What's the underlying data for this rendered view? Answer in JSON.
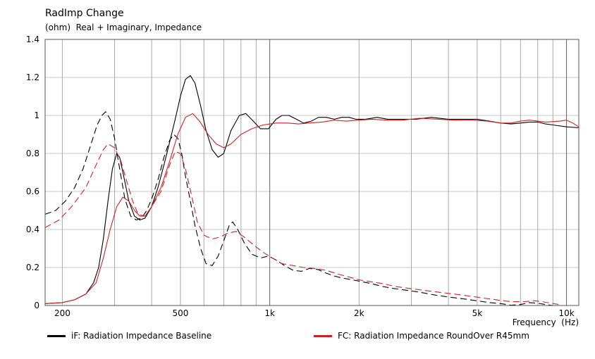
{
  "chart_data": {
    "type": "line",
    "title": "RadImp Change",
    "subtitle": "(ohm)  Real + Imaginary, Impedance",
    "xlabel": "Frequency  (Hz)",
    "ylabel": "(ohm)",
    "x_scale": "log",
    "xlim": [
      175,
      11000
    ],
    "ylim": [
      0,
      1.4
    ],
    "y_ticks": [
      0,
      0.2,
      0.4,
      0.6,
      0.8,
      1,
      1.2,
      1.4
    ],
    "y_tick_labels": [
      "0",
      "0.2",
      "0.4",
      "0.6",
      "0.8",
      "1",
      "1.2",
      "1.4"
    ],
    "x_tick_values": [
      200,
      500,
      1000,
      2000,
      5000,
      10000
    ],
    "x_tick_labels": [
      "200",
      "500",
      "1k",
      "2k",
      "5k",
      "10k"
    ],
    "grid": true,
    "legend_position": "bottom",
    "series": [
      {
        "name": "iF: Radiation Impedance Baseline",
        "color": "#000000",
        "component": "real",
        "style": "solid",
        "points": [
          [
            175,
            0.01
          ],
          [
            200,
            0.015
          ],
          [
            220,
            0.03
          ],
          [
            240,
            0.06
          ],
          [
            255,
            0.12
          ],
          [
            265,
            0.2
          ],
          [
            275,
            0.35
          ],
          [
            285,
            0.55
          ],
          [
            295,
            0.72
          ],
          [
            305,
            0.8
          ],
          [
            312,
            0.78
          ],
          [
            322,
            0.68
          ],
          [
            335,
            0.55
          ],
          [
            350,
            0.47
          ],
          [
            365,
            0.45
          ],
          [
            380,
            0.46
          ],
          [
            400,
            0.52
          ],
          [
            420,
            0.62
          ],
          [
            440,
            0.74
          ],
          [
            460,
            0.86
          ],
          [
            480,
            0.98
          ],
          [
            500,
            1.1
          ],
          [
            520,
            1.19
          ],
          [
            540,
            1.21
          ],
          [
            560,
            1.17
          ],
          [
            585,
            1.05
          ],
          [
            610,
            0.92
          ],
          [
            640,
            0.82
          ],
          [
            670,
            0.78
          ],
          [
            700,
            0.8
          ],
          [
            740,
            0.92
          ],
          [
            790,
            1.0
          ],
          [
            830,
            1.01
          ],
          [
            880,
            0.97
          ],
          [
            930,
            0.93
          ],
          [
            990,
            0.93
          ],
          [
            1050,
            0.98
          ],
          [
            1100,
            1.0
          ],
          [
            1160,
            1.0
          ],
          [
            1230,
            0.98
          ],
          [
            1300,
            0.96
          ],
          [
            1380,
            0.97
          ],
          [
            1460,
            0.99
          ],
          [
            1550,
            0.99
          ],
          [
            1650,
            0.98
          ],
          [
            1750,
            0.99
          ],
          [
            1850,
            0.99
          ],
          [
            1950,
            0.98
          ],
          [
            2100,
            0.98
          ],
          [
            2300,
            0.99
          ],
          [
            2500,
            0.98
          ],
          [
            2800,
            0.98
          ],
          [
            3100,
            0.98
          ],
          [
            3500,
            0.99
          ],
          [
            4000,
            0.98
          ],
          [
            4500,
            0.98
          ],
          [
            5000,
            0.98
          ],
          [
            5500,
            0.97
          ],
          [
            6000,
            0.96
          ],
          [
            6500,
            0.955
          ],
          [
            7000,
            0.96
          ],
          [
            7500,
            0.965
          ],
          [
            8000,
            0.965
          ],
          [
            8500,
            0.955
          ],
          [
            9000,
            0.95
          ],
          [
            10000,
            0.94
          ],
          [
            11000,
            0.935
          ]
        ]
      },
      {
        "name": "iF: Radiation Impedance Baseline",
        "color": "#000000",
        "component": "imaginary",
        "style": "dashed",
        "points": [
          [
            175,
            0.48
          ],
          [
            190,
            0.5
          ],
          [
            205,
            0.55
          ],
          [
            220,
            0.62
          ],
          [
            235,
            0.72
          ],
          [
            250,
            0.85
          ],
          [
            262,
            0.95
          ],
          [
            272,
            1.0
          ],
          [
            280,
            1.02
          ],
          [
            290,
            0.98
          ],
          [
            300,
            0.88
          ],
          [
            312,
            0.72
          ],
          [
            325,
            0.56
          ],
          [
            340,
            0.47
          ],
          [
            355,
            0.45
          ],
          [
            370,
            0.46
          ],
          [
            385,
            0.5
          ],
          [
            400,
            0.56
          ],
          [
            420,
            0.66
          ],
          [
            440,
            0.78
          ],
          [
            460,
            0.87
          ],
          [
            475,
            0.9
          ],
          [
            490,
            0.88
          ],
          [
            505,
            0.8
          ],
          [
            520,
            0.68
          ],
          [
            540,
            0.55
          ],
          [
            560,
            0.42
          ],
          [
            585,
            0.3
          ],
          [
            610,
            0.22
          ],
          [
            640,
            0.21
          ],
          [
            670,
            0.26
          ],
          [
            700,
            0.34
          ],
          [
            730,
            0.42
          ],
          [
            750,
            0.44
          ],
          [
            780,
            0.4
          ],
          [
            820,
            0.33
          ],
          [
            870,
            0.27
          ],
          [
            930,
            0.25
          ],
          [
            990,
            0.26
          ],
          [
            1050,
            0.24
          ],
          [
            1120,
            0.21
          ],
          [
            1200,
            0.185
          ],
          [
            1280,
            0.18
          ],
          [
            1360,
            0.195
          ],
          [
            1450,
            0.19
          ],
          [
            1550,
            0.17
          ],
          [
            1650,
            0.155
          ],
          [
            1750,
            0.145
          ],
          [
            1900,
            0.135
          ],
          [
            2050,
            0.125
          ],
          [
            2200,
            0.115
          ],
          [
            2400,
            0.1
          ],
          [
            2600,
            0.09
          ],
          [
            2900,
            0.08
          ],
          [
            3200,
            0.07
          ],
          [
            3600,
            0.055
          ],
          [
            4000,
            0.045
          ],
          [
            4500,
            0.035
          ],
          [
            5000,
            0.025
          ],
          [
            5500,
            0.015
          ],
          [
            6000,
            0.01
          ],
          [
            6500,
            0.002
          ],
          [
            7000,
            0.005
          ],
          [
            7500,
            0.015
          ],
          [
            8000,
            0.012
          ],
          [
            8500,
            0.005
          ],
          [
            9000,
            0.0
          ]
        ]
      },
      {
        "name": "FC: Radiation Impedance RoundOver R45mm",
        "color": "#cc2222",
        "component": "real",
        "style": "solid",
        "points": [
          [
            175,
            0.01
          ],
          [
            200,
            0.015
          ],
          [
            220,
            0.03
          ],
          [
            240,
            0.06
          ],
          [
            260,
            0.12
          ],
          [
            275,
            0.25
          ],
          [
            290,
            0.4
          ],
          [
            305,
            0.52
          ],
          [
            320,
            0.57
          ],
          [
            335,
            0.55
          ],
          [
            350,
            0.5
          ],
          [
            365,
            0.47
          ],
          [
            380,
            0.47
          ],
          [
            400,
            0.52
          ],
          [
            430,
            0.62
          ],
          [
            460,
            0.76
          ],
          [
            490,
            0.9
          ],
          [
            520,
            0.99
          ],
          [
            550,
            1.01
          ],
          [
            580,
            0.97
          ],
          [
            620,
            0.9
          ],
          [
            660,
            0.85
          ],
          [
            700,
            0.83
          ],
          [
            740,
            0.85
          ],
          [
            800,
            0.9
          ],
          [
            870,
            0.93
          ],
          [
            950,
            0.95
          ],
          [
            1050,
            0.96
          ],
          [
            1150,
            0.96
          ],
          [
            1250,
            0.955
          ],
          [
            1350,
            0.96
          ],
          [
            1500,
            0.965
          ],
          [
            1650,
            0.975
          ],
          [
            1800,
            0.97
          ],
          [
            2000,
            0.975
          ],
          [
            2200,
            0.98
          ],
          [
            2500,
            0.975
          ],
          [
            2800,
            0.975
          ],
          [
            3200,
            0.985
          ],
          [
            3700,
            0.98
          ],
          [
            4200,
            0.975
          ],
          [
            4800,
            0.975
          ],
          [
            5400,
            0.97
          ],
          [
            6000,
            0.96
          ],
          [
            6500,
            0.96
          ],
          [
            7000,
            0.97
          ],
          [
            7500,
            0.975
          ],
          [
            8000,
            0.97
          ],
          [
            8500,
            0.965
          ],
          [
            9500,
            0.97
          ],
          [
            10000,
            0.975
          ],
          [
            10500,
            0.96
          ],
          [
            11000,
            0.94
          ]
        ]
      },
      {
        "name": "FC: Radiation Impedance RoundOver R45mm",
        "color": "#cc2222",
        "component": "imaginary",
        "style": "dashed",
        "points": [
          [
            175,
            0.41
          ],
          [
            195,
            0.45
          ],
          [
            215,
            0.52
          ],
          [
            240,
            0.62
          ],
          [
            260,
            0.74
          ],
          [
            275,
            0.82
          ],
          [
            285,
            0.85
          ],
          [
            300,
            0.83
          ],
          [
            315,
            0.76
          ],
          [
            330,
            0.65
          ],
          [
            345,
            0.55
          ],
          [
            360,
            0.48
          ],
          [
            380,
            0.47
          ],
          [
            400,
            0.52
          ],
          [
            430,
            0.6
          ],
          [
            460,
            0.74
          ],
          [
            480,
            0.81
          ],
          [
            500,
            0.8
          ],
          [
            520,
            0.72
          ],
          [
            545,
            0.58
          ],
          [
            570,
            0.44
          ],
          [
            600,
            0.37
          ],
          [
            640,
            0.35
          ],
          [
            680,
            0.36
          ],
          [
            720,
            0.38
          ],
          [
            770,
            0.39
          ],
          [
            820,
            0.36
          ],
          [
            880,
            0.32
          ],
          [
            950,
            0.28
          ],
          [
            1020,
            0.25
          ],
          [
            1100,
            0.22
          ],
          [
            1200,
            0.21
          ],
          [
            1300,
            0.2
          ],
          [
            1420,
            0.195
          ],
          [
            1550,
            0.185
          ],
          [
            1700,
            0.165
          ],
          [
            1850,
            0.15
          ],
          [
            2000,
            0.135
          ],
          [
            2200,
            0.125
          ],
          [
            2400,
            0.115
          ],
          [
            2650,
            0.1
          ],
          [
            2950,
            0.09
          ],
          [
            3300,
            0.08
          ],
          [
            3700,
            0.07
          ],
          [
            4200,
            0.06
          ],
          [
            4700,
            0.05
          ],
          [
            5200,
            0.04
          ],
          [
            5800,
            0.03
          ],
          [
            6500,
            0.02
          ],
          [
            7200,
            0.02
          ],
          [
            7800,
            0.025
          ],
          [
            8300,
            0.02
          ],
          [
            9000,
            0.01
          ],
          [
            9500,
            0.005
          ]
        ]
      }
    ]
  }
}
